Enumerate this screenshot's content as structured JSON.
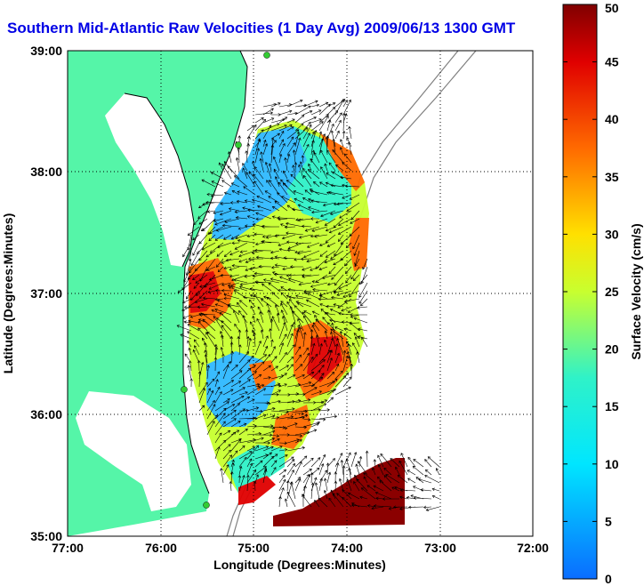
{
  "title": "Southern Mid-Atlantic Raw Velocities (1 Day Avg) 2009/06/13 1300 GMT",
  "map": {
    "xlabel": "Longitude (Degrees:Minutes)",
    "ylabel": "Latitude (Degrees:Minutes)",
    "x_ticks": [
      "77:00",
      "76:00",
      "75:00",
      "74:00",
      "73:00",
      "72:00"
    ],
    "y_ticks": [
      "39:00",
      "38:00",
      "37:00",
      "36:00",
      "35:00"
    ],
    "lon_range": [
      -77,
      -72
    ],
    "lat_range": [
      35,
      39
    ],
    "grid": true,
    "colors": {
      "land": "#55f5a8",
      "arrows": "#000000",
      "coast": "#000000",
      "bathymetry": "#808080",
      "stations": "#33cc33"
    }
  },
  "colorbar": {
    "label": "Surface Velocity (cm/s)",
    "ticks": [
      "0",
      "5",
      "10",
      "15",
      "20",
      "25",
      "30",
      "35",
      "40",
      "45",
      "50"
    ],
    "range": [
      0,
      50
    ],
    "colormap": "jet"
  }
}
